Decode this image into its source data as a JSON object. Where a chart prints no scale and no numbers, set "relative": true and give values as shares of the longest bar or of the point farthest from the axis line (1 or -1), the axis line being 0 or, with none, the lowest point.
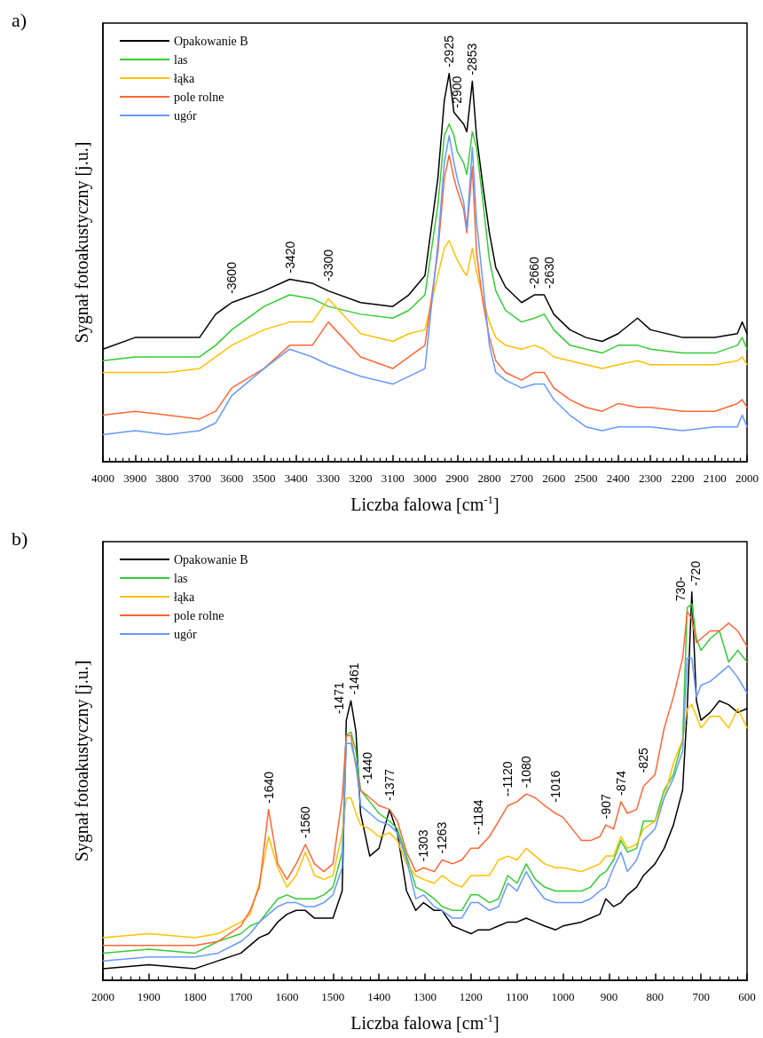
{
  "chart_data": [
    {
      "type": "line",
      "title": "a)",
      "xlabel": "Liczba falowa [cm$^{-1}$]",
      "ylabel": "Sygnał fotoakustyczny [j.u.]",
      "relative": true,
      "grid": false,
      "legend": "top left",
      "marker": "none",
      "line_style": "solid",
      "xlim": [
        4000,
        2000
      ],
      "xticks": [
        4000,
        3900,
        3800,
        3700,
        3600,
        3500,
        3400,
        3300,
        3200,
        3100,
        3000,
        2900,
        2800,
        2700,
        2600,
        2500,
        2400,
        2300,
        2200,
        2100,
        2000
      ],
      "x": [
        4000,
        3900,
        3800,
        3700,
        3650,
        3600,
        3500,
        3420,
        3350,
        3300,
        3200,
        3100,
        3050,
        3000,
        2960,
        2940,
        2925,
        2910,
        2900,
        2880,
        2870,
        2853,
        2840,
        2820,
        2800,
        2780,
        2750,
        2700,
        2660,
        2630,
        2600,
        2550,
        2500,
        2450,
        2400,
        2340,
        2300,
        2200,
        2100,
        2030,
        2015,
        2000
      ],
      "series": [
        {
          "name": "Opakowanie B",
          "color": "#000000",
          "values": [
            0.29,
            0.32,
            0.32,
            0.32,
            0.38,
            0.41,
            0.44,
            0.47,
            0.46,
            0.44,
            0.41,
            0.4,
            0.43,
            0.48,
            0.73,
            0.93,
            1.0,
            0.9,
            0.89,
            0.87,
            0.85,
            0.98,
            0.84,
            0.71,
            0.59,
            0.5,
            0.45,
            0.41,
            0.43,
            0.43,
            0.38,
            0.34,
            0.32,
            0.31,
            0.33,
            0.37,
            0.34,
            0.32,
            0.32,
            0.33,
            0.36,
            0.33
          ]
        },
        {
          "name": "las",
          "color": "#33cc33",
          "values": [
            0.26,
            0.27,
            0.27,
            0.27,
            0.3,
            0.34,
            0.4,
            0.43,
            0.42,
            0.4,
            0.38,
            0.37,
            0.39,
            0.43,
            0.66,
            0.84,
            0.87,
            0.84,
            0.8,
            0.77,
            0.74,
            0.85,
            0.81,
            0.67,
            0.52,
            0.44,
            0.39,
            0.36,
            0.37,
            0.38,
            0.34,
            0.3,
            0.29,
            0.28,
            0.3,
            0.3,
            0.29,
            0.28,
            0.28,
            0.3,
            0.32,
            0.29
          ]
        },
        {
          "name": "łąka",
          "color": "#ffc000",
          "values": [
            0.23,
            0.23,
            0.23,
            0.24,
            0.27,
            0.3,
            0.34,
            0.36,
            0.36,
            0.42,
            0.33,
            0.31,
            0.33,
            0.34,
            0.48,
            0.55,
            0.57,
            0.54,
            0.52,
            0.49,
            0.48,
            0.55,
            0.49,
            0.42,
            0.36,
            0.32,
            0.3,
            0.29,
            0.3,
            0.29,
            0.27,
            0.26,
            0.25,
            0.24,
            0.25,
            0.26,
            0.25,
            0.25,
            0.25,
            0.26,
            0.27,
            0.25
          ]
        },
        {
          "name": "pole rolne",
          "color": "#ff6633",
          "values": [
            0.12,
            0.13,
            0.12,
            0.11,
            0.13,
            0.19,
            0.24,
            0.3,
            0.3,
            0.36,
            0.27,
            0.24,
            0.27,
            0.3,
            0.54,
            0.73,
            0.79,
            0.73,
            0.7,
            0.65,
            0.59,
            0.76,
            0.54,
            0.41,
            0.32,
            0.26,
            0.23,
            0.21,
            0.23,
            0.23,
            0.19,
            0.16,
            0.14,
            0.13,
            0.15,
            0.14,
            0.14,
            0.13,
            0.13,
            0.15,
            0.16,
            0.14
          ]
        },
        {
          "name": "ugór",
          "color": "#6699ff",
          "values": [
            0.07,
            0.08,
            0.07,
            0.08,
            0.1,
            0.17,
            0.24,
            0.29,
            0.27,
            0.25,
            0.22,
            0.2,
            0.22,
            0.24,
            0.56,
            0.77,
            0.84,
            0.77,
            0.73,
            0.67,
            0.6,
            0.81,
            0.62,
            0.46,
            0.3,
            0.23,
            0.21,
            0.19,
            0.2,
            0.2,
            0.16,
            0.12,
            0.09,
            0.08,
            0.09,
            0.09,
            0.09,
            0.08,
            0.09,
            0.09,
            0.12,
            0.09
          ]
        }
      ],
      "annotations": [
        {
          "text": "-3600",
          "x": 3600,
          "y": 0.41
        },
        {
          "text": "-3420",
          "x": 3420,
          "y": 0.47
        },
        {
          "text": "-3300",
          "x": 3300,
          "y": 0.44
        },
        {
          "text": "-2925",
          "x": 2925,
          "y": 1.0
        },
        {
          "text": "-2900",
          "x": 2900,
          "y": 0.89
        },
        {
          "text": "-2853",
          "x": 2853,
          "y": 0.98
        },
        {
          "text": "-2660",
          "x": 2660,
          "y": 0.43
        },
        {
          "text": "-2630",
          "x": 2630,
          "y": 0.43
        }
      ]
    },
    {
      "type": "line",
      "title": "b)",
      "xlabel": "Liczba falowa [cm$^{-1}$]",
      "ylabel": "Sygnał fotoakustyczny [j.u.]",
      "relative": true,
      "grid": false,
      "legend": "top left",
      "marker": "none",
      "line_style": "solid",
      "xlim": [
        2000,
        600
      ],
      "xticks": [
        2000,
        1900,
        1800,
        1700,
        1600,
        1500,
        1400,
        1300,
        1200,
        1100,
        1000,
        900,
        800,
        700,
        600
      ],
      "x": [
        2000,
        1900,
        1800,
        1750,
        1700,
        1680,
        1660,
        1640,
        1620,
        1600,
        1580,
        1560,
        1540,
        1520,
        1500,
        1480,
        1471,
        1461,
        1450,
        1440,
        1420,
        1400,
        1377,
        1360,
        1340,
        1320,
        1303,
        1280,
        1263,
        1240,
        1220,
        1200,
        1184,
        1160,
        1140,
        1120,
        1100,
        1080,
        1060,
        1040,
        1016,
        1000,
        960,
        940,
        920,
        907,
        890,
        874,
        860,
        840,
        825,
        800,
        780,
        760,
        740,
        730,
        720,
        710,
        700,
        680,
        660,
        640,
        620,
        600
      ],
      "series": [
        {
          "name": "Opakowanie B",
          "color": "#000000",
          "values": [
            0.03,
            0.04,
            0.03,
            0.05,
            0.07,
            0.09,
            0.11,
            0.12,
            0.15,
            0.17,
            0.18,
            0.18,
            0.16,
            0.16,
            0.16,
            0.23,
            0.67,
            0.72,
            0.64,
            0.43,
            0.32,
            0.34,
            0.44,
            0.38,
            0.23,
            0.18,
            0.2,
            0.18,
            0.18,
            0.14,
            0.13,
            0.12,
            0.13,
            0.13,
            0.14,
            0.15,
            0.15,
            0.16,
            0.15,
            0.14,
            0.13,
            0.14,
            0.15,
            0.16,
            0.17,
            0.21,
            0.19,
            0.2,
            0.22,
            0.24,
            0.27,
            0.3,
            0.34,
            0.4,
            0.49,
            0.7,
            1.0,
            0.72,
            0.67,
            0.69,
            0.72,
            0.71,
            0.69,
            0.7
          ]
        },
        {
          "name": "las",
          "color": "#33cc33",
          "values": [
            0.07,
            0.08,
            0.07,
            0.1,
            0.12,
            0.14,
            0.15,
            0.18,
            0.21,
            0.22,
            0.21,
            0.21,
            0.21,
            0.22,
            0.24,
            0.33,
            0.63,
            0.64,
            0.59,
            0.49,
            0.46,
            0.43,
            0.41,
            0.39,
            0.32,
            0.24,
            0.23,
            0.21,
            0.19,
            0.18,
            0.18,
            0.22,
            0.22,
            0.2,
            0.21,
            0.27,
            0.25,
            0.3,
            0.26,
            0.24,
            0.23,
            0.23,
            0.23,
            0.24,
            0.27,
            0.28,
            0.31,
            0.36,
            0.33,
            0.34,
            0.41,
            0.41,
            0.49,
            0.53,
            0.62,
            0.96,
            0.97,
            0.88,
            0.85,
            0.88,
            0.9,
            0.82,
            0.85,
            0.82
          ]
        },
        {
          "name": "łąka",
          "color": "#ffc000",
          "values": [
            0.11,
            0.12,
            0.11,
            0.12,
            0.15,
            0.17,
            0.25,
            0.37,
            0.29,
            0.24,
            0.27,
            0.33,
            0.27,
            0.26,
            0.27,
            0.38,
            0.47,
            0.47,
            0.43,
            0.4,
            0.39,
            0.37,
            0.38,
            0.36,
            0.3,
            0.27,
            0.26,
            0.25,
            0.27,
            0.25,
            0.24,
            0.27,
            0.27,
            0.27,
            0.31,
            0.32,
            0.31,
            0.34,
            0.32,
            0.3,
            0.29,
            0.29,
            0.28,
            0.29,
            0.3,
            0.32,
            0.32,
            0.37,
            0.34,
            0.35,
            0.39,
            0.41,
            0.47,
            0.56,
            0.62,
            0.7,
            0.71,
            0.68,
            0.65,
            0.68,
            0.68,
            0.65,
            0.7,
            0.65
          ]
        },
        {
          "name": "pole rolne",
          "color": "#ff6633",
          "values": [
            0.09,
            0.09,
            0.09,
            0.1,
            0.14,
            0.18,
            0.24,
            0.44,
            0.3,
            0.26,
            0.3,
            0.35,
            0.3,
            0.28,
            0.3,
            0.47,
            0.63,
            0.63,
            0.55,
            0.49,
            0.47,
            0.45,
            0.44,
            0.41,
            0.33,
            0.28,
            0.29,
            0.28,
            0.31,
            0.3,
            0.31,
            0.34,
            0.34,
            0.37,
            0.41,
            0.45,
            0.46,
            0.48,
            0.47,
            0.45,
            0.43,
            0.42,
            0.36,
            0.36,
            0.37,
            0.4,
            0.39,
            0.46,
            0.43,
            0.44,
            0.5,
            0.53,
            0.65,
            0.73,
            0.83,
            0.95,
            0.93,
            0.87,
            0.88,
            0.9,
            0.9,
            0.92,
            0.9,
            0.86
          ]
        },
        {
          "name": "ugór",
          "color": "#6699ff",
          "values": [
            0.05,
            0.06,
            0.06,
            0.07,
            0.1,
            0.12,
            0.15,
            0.17,
            0.19,
            0.2,
            0.2,
            0.19,
            0.19,
            0.2,
            0.22,
            0.29,
            0.61,
            0.61,
            0.56,
            0.45,
            0.43,
            0.41,
            0.4,
            0.38,
            0.31,
            0.21,
            0.22,
            0.19,
            0.18,
            0.16,
            0.16,
            0.2,
            0.2,
            0.18,
            0.19,
            0.25,
            0.23,
            0.28,
            0.24,
            0.21,
            0.2,
            0.2,
            0.2,
            0.21,
            0.23,
            0.24,
            0.29,
            0.33,
            0.28,
            0.31,
            0.36,
            0.39,
            0.47,
            0.52,
            0.59,
            0.83,
            0.83,
            0.73,
            0.76,
            0.77,
            0.79,
            0.81,
            0.78,
            0.74
          ]
        }
      ],
      "annotations": [
        {
          "text": "-1640",
          "x": 1640,
          "y": 0.44
        },
        {
          "text": "-1560",
          "x": 1560,
          "y": 0.35
        },
        {
          "text": "-1471",
          "x": 1471,
          "y": 0.67
        },
        {
          "text": "-1461",
          "x": 1461,
          "y": 0.72
        },
        {
          "text": "-1440",
          "x": 1440,
          "y": 0.49
        },
        {
          "text": "-1377",
          "x": 1377,
          "y": 0.44
        },
        {
          "text": "-1303",
          "x": 1303,
          "y": 0.29
        },
        {
          "text": "-1263",
          "x": 1263,
          "y": 0.31
        },
        {
          "text": "--1184",
          "x": 1184,
          "y": 0.34
        },
        {
          "text": "--1120",
          "x": 1120,
          "y": 0.45
        },
        {
          "text": "-1080",
          "x": 1080,
          "y": 0.48
        },
        {
          "text": "-1016",
          "x": 1016,
          "y": 0.43
        },
        {
          "text": "-907",
          "x": 907,
          "y": 0.4
        },
        {
          "text": "-874",
          "x": 874,
          "y": 0.46
        },
        {
          "text": "-825",
          "x": 825,
          "y": 0.5
        },
        {
          "text": "730-",
          "x": 730,
          "y": 0.95
        },
        {
          "text": "-720",
          "x": 720,
          "y": 1.0
        }
      ]
    }
  ]
}
